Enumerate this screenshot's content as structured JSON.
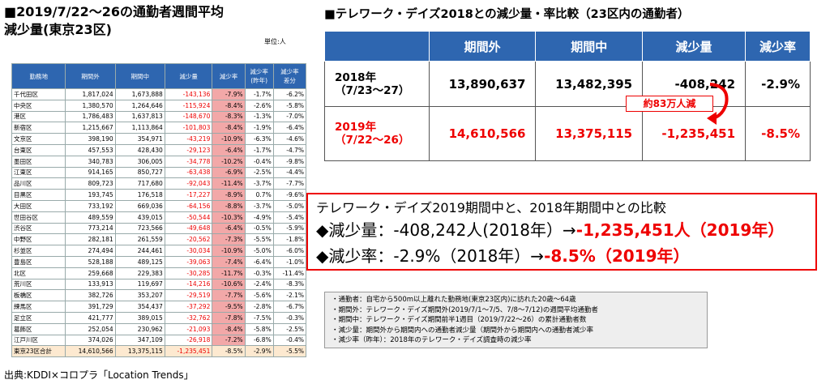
{
  "left": {
    "title": "■2019/7/22～26の通勤者週間平均\n減少量(東京23区)",
    "unit": "単位:人",
    "header": [
      "勤務地",
      "期間外",
      "期間中",
      "減少量",
      "減少率",
      "減少率\n(昨年)",
      "減少率\n差分"
    ],
    "rows": [
      [
        "千代田区",
        "1,817,024",
        "1,673,888",
        "-143,136",
        "-7.9%",
        "-1.7%",
        "-6.2%"
      ],
      [
        "中央区",
        "1,380,570",
        "1,264,646",
        "-115,924",
        "-8.4%",
        "-2.6%",
        "-5.8%"
      ],
      [
        "港区",
        "1,786,483",
        "1,637,813",
        "-148,670",
        "-8.3%",
        "-1.3%",
        "-7.0%"
      ],
      [
        "新宿区",
        "1,215,667",
        "1,113,864",
        "-101,803",
        "-8.4%",
        "-1.9%",
        "-6.4%"
      ],
      [
        "文京区",
        "398,190",
        "354,971",
        "-43,219",
        "-10.9%",
        "-6.3%",
        "-4.6%"
      ],
      [
        "台東区",
        "457,553",
        "428,430",
        "-29,123",
        "-6.4%",
        "-1.7%",
        "-4.7%"
      ],
      [
        "墨田区",
        "340,783",
        "306,005",
        "-34,778",
        "-10.2%",
        "-0.4%",
        "-9.8%"
      ],
      [
        "江東区",
        "914,165",
        "850,727",
        "-63,438",
        "-6.9%",
        "-2.5%",
        "-4.4%"
      ],
      [
        "品川区",
        "809,723",
        "717,680",
        "-92,043",
        "-11.4%",
        "-3.7%",
        "-7.7%"
      ],
      [
        "目黒区",
        "193,745",
        "176,518",
        "-17,227",
        "-8.9%",
        "0.7%",
        "-9.6%"
      ],
      [
        "大田区",
        "733,192",
        "669,036",
        "-64,156",
        "-8.8%",
        "-3.7%",
        "-5.0%"
      ],
      [
        "世田谷区",
        "489,559",
        "439,015",
        "-50,544",
        "-10.3%",
        "-4.9%",
        "-5.4%"
      ],
      [
        "渋谷区",
        "773,214",
        "723,566",
        "-49,648",
        "-6.4%",
        "-0.5%",
        "-5.9%"
      ],
      [
        "中野区",
        "282,181",
        "261,559",
        "-20,562",
        "-7.3%",
        "-5.5%",
        "-1.8%"
      ],
      [
        "杉並区",
        "274,494",
        "244,461",
        "-30,034",
        "-10.9%",
        "-5.0%",
        "-6.0%"
      ],
      [
        "豊島区",
        "528,188",
        "489,125",
        "-39,063",
        "-7.4%",
        "-6.4%",
        "-1.0%"
      ],
      [
        "北区",
        "259,668",
        "229,383",
        "-30,285",
        "-11.7%",
        "-0.3%",
        "-11.4%"
      ],
      [
        "荒川区",
        "133,913",
        "119,697",
        "-14,216",
        "-10.6%",
        "-2.4%",
        "-8.3%"
      ],
      [
        "板橋区",
        "382,726",
        "353,207",
        "-29,519",
        "-7.7%",
        "-5.6%",
        "-2.1%"
      ],
      [
        "練馬区",
        "391,729",
        "354,437",
        "-37,292",
        "-9.5%",
        "-2.8%",
        "-6.7%"
      ],
      [
        "足立区",
        "421,777",
        "389,015",
        "-32,762",
        "-7.8%",
        "-7.5%",
        "-0.3%"
      ],
      [
        "葛飾区",
        "252,054",
        "230,962",
        "-21,093",
        "-8.4%",
        "-5.8%",
        "-2.5%"
      ],
      [
        "江戸川区",
        "374,026",
        "347,109",
        "-26,918",
        "-7.2%",
        "-6.8%",
        "-0.4%"
      ],
      [
        "東京23区合計",
        "14,610,566",
        "13,375,115",
        "-1,235,451",
        "-8.5%",
        "-2.9%",
        "-5.5%"
      ]
    ]
  },
  "right": {
    "title": "■テレワーク・デイズ2018との減少量・率比較（23区内の通勤者）",
    "header": [
      "期間外",
      "期間中",
      "減少量",
      "減少率"
    ],
    "rows": [
      [
        "2018年\n（7/23〜27）",
        "13,890,637",
        "13,482,395",
        "-408,242",
        "-2.9%"
      ],
      [
        "2019年\n（7/22〜26）",
        "14,610,566",
        "13,375,115",
        "-1,235,451",
        "-8.5%"
      ]
    ],
    "annotation": "約83万人減"
  },
  "box": {
    "line1": "テレワーク・デイズ2019期間中と、2018年期間中との比較",
    "line2": {
      "text": "◆減少量：-408,242人(2018年）→",
      "highlight": "-1,235,451人（2019年）"
    },
    "line3": {
      "text": "◆減少率：-2.9%（2018年）→",
      "highlight": "-8.5%（2019年）"
    }
  },
  "notes": [
    "・通勤者：自宅から500m以上離れた勤務地(東京23区内)に訪れた20歳～64歳",
    "・期間外：テレワーク・デイズ期間外(2019/7/1～7/5、7/8～7/12)の週間平均通勤者",
    "・期間中：テレワーク・デイズ期間前半1週目（2019/7/22～26）の累計通勤者数",
    "・減少量：期間外から期間内への通勤者減少量（期間外から期間内への通勤者減少率",
    "・減少率（昨年）：2018年のテレワーク・デイズ調査時の減少率"
  ],
  "source": "出典:KDDI×コロプラ「Location Trends」"
}
